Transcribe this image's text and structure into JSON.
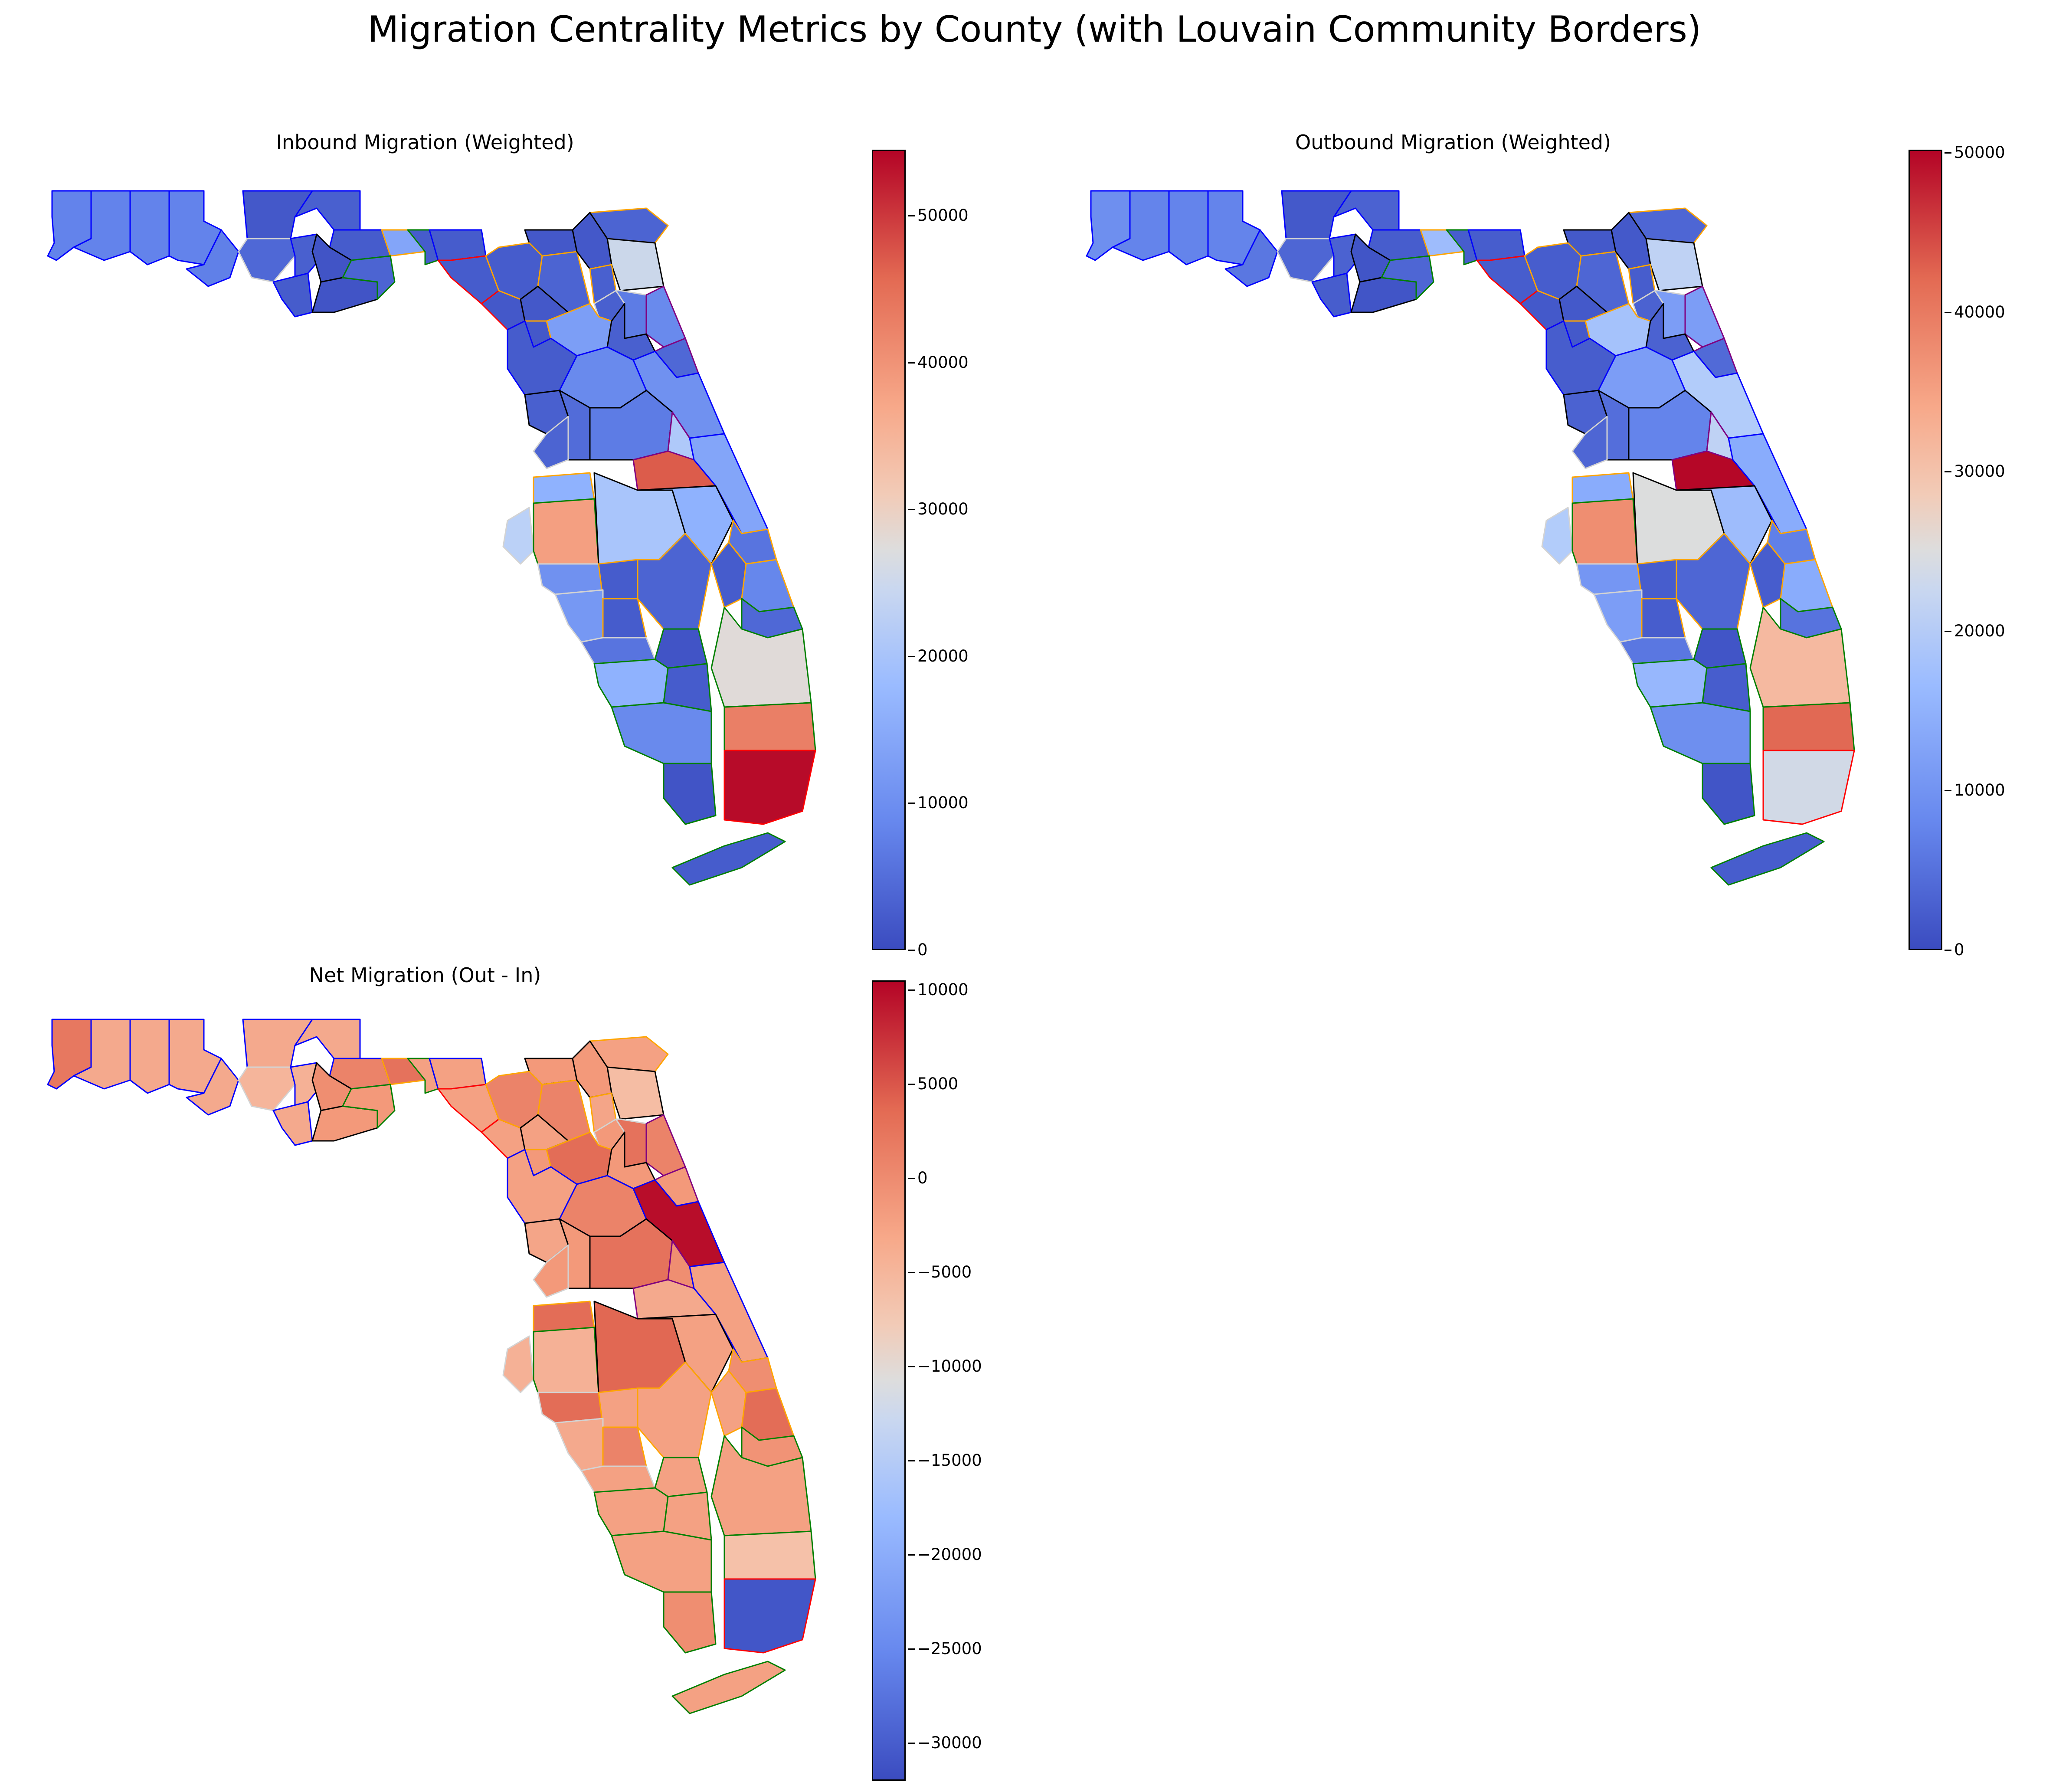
{
  "title": "Migration Centrality Metrics by County (with Louvain Community Borders)",
  "community_border_colors": [
    "#0000ff",
    "#ffa500",
    "#008000",
    "#ff0000",
    "#000000",
    "#800080",
    "#d3d3d3"
  ],
  "panels": [
    {
      "key": "inbound",
      "title": "Inbound Migration (Weighted)",
      "colormap": "coolwarm",
      "colorbar": {
        "min": 0,
        "max": 54500,
        "ticks": [
          "0",
          "10000",
          "20000",
          "30000",
          "40000",
          "50000"
        ],
        "tick_values": [
          0,
          10000,
          20000,
          30000,
          40000,
          50000
        ]
      }
    },
    {
      "key": "outbound",
      "title": "Outbound Migration (Weighted)",
      "colormap": "coolwarm",
      "colorbar": {
        "min": 0,
        "max": 50200,
        "ticks": [
          "0",
          "10000",
          "20000",
          "30000",
          "40000",
          "50000"
        ],
        "tick_values": [
          0,
          10000,
          20000,
          30000,
          40000,
          50000
        ]
      }
    },
    {
      "key": "net",
      "title": "Net Migration (Out - In)",
      "colormap": "coolwarm",
      "colorbar": {
        "min": -32000,
        "max": 10500,
        "ticks": [
          "−30000",
          "−25000",
          "−20000",
          "−15000",
          "−10000",
          "−5000",
          "0",
          "5000",
          "10000"
        ],
        "tick_values": [
          -30000,
          -25000,
          -20000,
          -15000,
          -10000,
          -5000,
          0,
          5000,
          10000
        ]
      }
    }
  ],
  "regions": [
    {
      "id": "escambia",
      "community": "#0000ff",
      "inbound": 7000,
      "outbound": 8000,
      "net": 3000
    },
    {
      "id": "santa-rosa",
      "community": "#0000ff",
      "inbound": 7000,
      "outbound": 6500,
      "net": -2000
    },
    {
      "id": "okaloosa",
      "community": "#0000ff",
      "inbound": 7000,
      "outbound": 6500,
      "net": -2000
    },
    {
      "id": "walton",
      "community": "#0000ff",
      "inbound": 7000,
      "outbound": 6500,
      "net": -2000
    },
    {
      "id": "bay",
      "community": "#0000ff",
      "inbound": 6500,
      "outbound": 5000,
      "net": -2000
    },
    {
      "id": "holmes",
      "community": "#0000ff",
      "inbound": 1500,
      "outbound": 1500,
      "net": -2000
    },
    {
      "id": "washington",
      "community": "#d3d3d3",
      "inbound": 3500,
      "outbound": 3000,
      "net": -3500
    },
    {
      "id": "jackson",
      "community": "#0000ff",
      "inbound": 2500,
      "outbound": 2500,
      "net": -2000
    },
    {
      "id": "calhoun",
      "community": "#0000ff",
      "inbound": 2500,
      "outbound": 2500,
      "net": -3000
    },
    {
      "id": "gulf",
      "community": "#0000ff",
      "inbound": 2000,
      "outbound": 2000,
      "net": -2000
    },
    {
      "id": "gadsden",
      "community": "#0000ff",
      "inbound": 2000,
      "outbound": 2000,
      "net": 2000
    },
    {
      "id": "liberty",
      "community": "#000000",
      "inbound": 1000,
      "outbound": 1000,
      "net": 1000
    },
    {
      "id": "franklin",
      "community": "#000000",
      "inbound": 1000,
      "outbound": 1000,
      "net": 0
    },
    {
      "id": "leon",
      "community": "#ffa500",
      "inbound": 12000,
      "outbound": 15000,
      "net": 3500
    },
    {
      "id": "wakulla",
      "community": "#008000",
      "inbound": 3000,
      "outbound": 3000,
      "net": 0
    },
    {
      "id": "jefferson",
      "community": "#008000",
      "inbound": 2000,
      "outbound": 2000,
      "net": -1000
    },
    {
      "id": "madison",
      "community": "#0000ff",
      "inbound": 2000,
      "outbound": 2000,
      "net": -1000
    },
    {
      "id": "taylor",
      "community": "#ff0000",
      "inbound": 2000,
      "outbound": 2000,
      "net": -1000
    },
    {
      "id": "dixie",
      "community": "#ff0000",
      "inbound": 1500,
      "outbound": 1500,
      "net": -1000
    },
    {
      "id": "hamilton",
      "community": "#000000",
      "inbound": 1500,
      "outbound": 1500,
      "net": 0
    },
    {
      "id": "suwannee",
      "community": "#ffa500",
      "inbound": 2000,
      "outbound": 2000,
      "net": 2000
    },
    {
      "id": "columbia",
      "community": "#ffa500",
      "inbound": 3000,
      "outbound": 3000,
      "net": 2000
    },
    {
      "id": "lafayette",
      "community": "#000000",
      "inbound": 1500,
      "outbound": 1500,
      "net": -1000
    },
    {
      "id": "nassau",
      "community": "#ffa500",
      "inbound": 3000,
      "outbound": 3000,
      "net": -1000
    },
    {
      "id": "duval",
      "community": "#000000",
      "inbound": 24000,
      "outbound": 20000,
      "net": -4500
    },
    {
      "id": "baker",
      "community": "#000000",
      "inbound": 1500,
      "outbound": 1500,
      "net": 0
    },
    {
      "id": "union",
      "community": "#ffa500",
      "inbound": 2500,
      "outbound": 2000,
      "net": -1500
    },
    {
      "id": "bradford",
      "community": "#d3d3d3",
      "inbound": 2500,
      "outbound": 2500,
      "net": 0
    },
    {
      "id": "clay",
      "community": "#d3d3d3",
      "inbound": 6000,
      "outbound": 10000,
      "net": 3500
    },
    {
      "id": "st-johns",
      "community": "#800080",
      "inbound": 8000,
      "outbound": 10000,
      "net": 2000
    },
    {
      "id": "alachua",
      "community": "#ffa500",
      "inbound": 11000,
      "outbound": 16000,
      "net": 4000
    },
    {
      "id": "putnam",
      "community": "#000000",
      "inbound": 2500,
      "outbound": 2500,
      "net": 0
    },
    {
      "id": "flagler",
      "community": "#800080",
      "inbound": 3500,
      "outbound": 3500,
      "net": 0
    },
    {
      "id": "gilchrist",
      "community": "#ffa500",
      "inbound": 1500,
      "outbound": 1500,
      "net": 0
    },
    {
      "id": "levy",
      "community": "#0000ff",
      "inbound": 2000,
      "outbound": 2000,
      "net": -1000
    },
    {
      "id": "marion",
      "community": "#0000ff",
      "inbound": 8000,
      "outbound": 10000,
      "net": 2000
    },
    {
      "id": "volusia",
      "community": "#0000ff",
      "inbound": 9000,
      "outbound": 18000,
      "net": 10000
    },
    {
      "id": "citrus",
      "community": "#000000",
      "inbound": 2500,
      "outbound": 2500,
      "net": -1500
    },
    {
      "id": "sumter",
      "community": "#000000",
      "inbound": 4000,
      "outbound": 4000,
      "net": 0
    },
    {
      "id": "lake",
      "community": "#000000",
      "inbound": 6000,
      "outbound": 6500,
      "net": 3500
    },
    {
      "id": "hernando",
      "community": "#d3d3d3",
      "inbound": 3000,
      "outbound": 3000,
      "net": 0
    },
    {
      "id": "seminole",
      "community": "#800080",
      "inbound": 19000,
      "outbound": 20000,
      "net": 1000
    },
    {
      "id": "orange",
      "community": "#800080",
      "inbound": 48000,
      "outbound": 50000,
      "net": -2000
    },
    {
      "id": "brevard",
      "community": "#0000ff",
      "inbound": 12000,
      "outbound": 12000,
      "net": -1000
    },
    {
      "id": "pasco",
      "community": "#ffa500",
      "inbound": 14000,
      "outbound": 12000,
      "net": 4000
    },
    {
      "id": "pinellas",
      "community": "#d3d3d3",
      "inbound": 21000,
      "outbound": 18000,
      "net": -3000
    },
    {
      "id": "hillsborough",
      "community": "#008000",
      "inbound": 40000,
      "outbound": 39000,
      "net": -3000
    },
    {
      "id": "polk",
      "community": "#000000",
      "inbound": 18000,
      "outbound": 25000,
      "net": 4500
    },
    {
      "id": "osceola",
      "community": "#000000",
      "inbound": 14000,
      "outbound": 15000,
      "net": -1000
    },
    {
      "id": "indian-river",
      "community": "#ffa500",
      "inbound": 5000,
      "outbound": 6000,
      "net": 1000
    },
    {
      "id": "manatee",
      "community": "#d3d3d3",
      "inbound": 9000,
      "outbound": 9000,
      "net": 4000
    },
    {
      "id": "hardee",
      "community": "#ffa500",
      "inbound": 2000,
      "outbound": 2000,
      "net": -1000
    },
    {
      "id": "highlands",
      "community": "#ffa500",
      "inbound": 3000,
      "outbound": 3000,
      "net": -1000
    },
    {
      "id": "okeechobee",
      "community": "#ffa500",
      "inbound": 2000,
      "outbound": 2000,
      "net": -1000
    },
    {
      "id": "st-lucie",
      "community": "#ffa500",
      "inbound": 7500,
      "outbound": 12000,
      "net": 4000
    },
    {
      "id": "martin",
      "community": "#008000",
      "inbound": 3500,
      "outbound": 4500,
      "net": 500
    },
    {
      "id": "sarasota",
      "community": "#d3d3d3",
      "inbound": 10000,
      "outbound": 10000,
      "net": -2000
    },
    {
      "id": "desoto",
      "community": "#ffa500",
      "inbound": 2000,
      "outbound": 2000,
      "net": 2000
    },
    {
      "id": "charlotte",
      "community": "#d3d3d3",
      "inbound": 5000,
      "outbound": 5000,
      "net": -1000
    },
    {
      "id": "glades",
      "community": "#008000",
      "inbound": 1000,
      "outbound": 1000,
      "net": -1000
    },
    {
      "id": "lee",
      "community": "#008000",
      "inbound": 14000,
      "outbound": 14000,
      "net": -1000
    },
    {
      "id": "hendry",
      "community": "#008000",
      "inbound": 2000,
      "outbound": 2000,
      "net": -1000
    },
    {
      "id": "palm-beach",
      "community": "#008000",
      "inbound": 28000,
      "outbound": 33000,
      "net": -1000
    },
    {
      "id": "collier",
      "community": "#008000",
      "inbound": 8000,
      "outbound": 8000,
      "net": -1000
    },
    {
      "id": "broward",
      "community": "#008000",
      "inbound": 44000,
      "outbound": 43000,
      "net": -5000
    },
    {
      "id": "monroe-mainland",
      "community": "#008000",
      "inbound": 1000,
      "outbound": 1000,
      "net": 1000
    },
    {
      "id": "miami-dade",
      "community": "#ff0000",
      "inbound": 54000,
      "outbound": 23000,
      "net": -31000
    },
    {
      "id": "keys",
      "community": "#008000",
      "inbound": 2000,
      "outbound": 2000,
      "net": -1000
    }
  ]
}
